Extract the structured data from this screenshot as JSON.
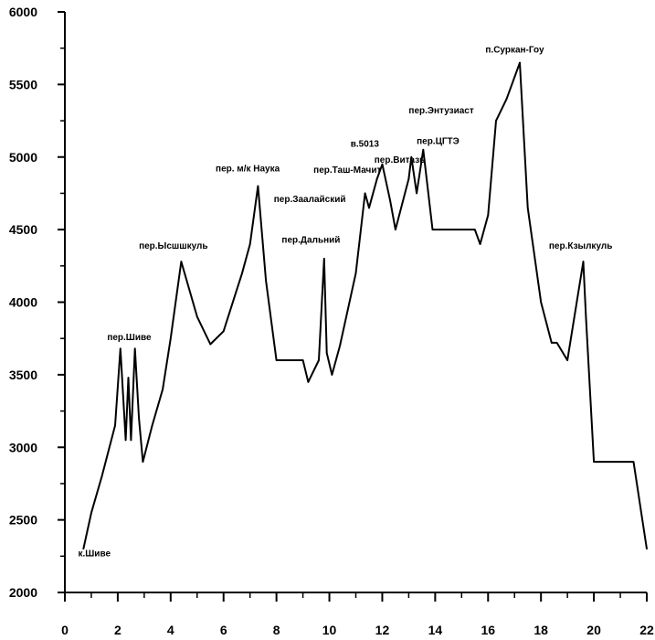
{
  "chart_data": {
    "type": "line",
    "title": "",
    "xlabel": "",
    "ylabel": "",
    "xlim": [
      0,
      22
    ],
    "ylim": [
      2000,
      6000
    ],
    "x_ticks": [
      0,
      2,
      4,
      6,
      8,
      10,
      12,
      14,
      16,
      18,
      20,
      22
    ],
    "y_ticks": [
      2000,
      2500,
      3000,
      3500,
      4000,
      4500,
      5000,
      5500,
      6000
    ],
    "grid": false,
    "legend": "none",
    "series": [
      {
        "x": [
          0.7,
          1.0,
          1.4,
          1.9,
          2.1,
          2.3,
          2.4,
          2.5,
          2.65,
          2.8,
          2.95,
          3.3,
          3.7,
          4.0,
          4.4,
          5.0,
          5.5,
          6.0,
          6.7,
          7.0,
          7.3,
          7.6,
          8.0,
          9.0,
          9.2,
          9.6,
          9.8,
          9.9,
          10.1,
          10.4,
          11.0,
          11.35,
          11.5,
          11.8,
          12.0,
          12.3,
          12.5,
          13.0,
          13.1,
          13.3,
          13.55,
          13.9,
          14.5,
          15.5,
          15.7,
          16.0,
          16.3,
          16.7,
          17.2,
          17.5,
          18.0,
          18.4,
          18.6,
          19.0,
          19.6,
          19.7,
          20.0,
          21.0,
          21.5,
          22.0
        ],
        "y": [
          2300,
          2550,
          2800,
          3150,
          3680,
          3050,
          3480,
          3050,
          3680,
          3200,
          2900,
          3150,
          3400,
          3750,
          4280,
          3900,
          3710,
          3800,
          4200,
          4400,
          4800,
          4150,
          3600,
          3600,
          3450,
          3600,
          4300,
          3650,
          3500,
          3700,
          4200,
          4750,
          4650,
          4850,
          4950,
          4700,
          4500,
          4850,
          5000,
          4750,
          5050,
          4500,
          4500,
          4500,
          4400,
          4600,
          5250,
          5400,
          5650,
          4650,
          4000,
          3720,
          3720,
          3600,
          4280,
          3900,
          2900,
          2900,
          2900,
          2300
        ]
      }
    ],
    "annotations": [
      {
        "text": "к.Шиве",
        "x": 0.5,
        "y": 2250
      },
      {
        "text": "пер.Шиве",
        "x": 1.6,
        "y": 3740
      },
      {
        "text": "пер.Ысшшкуль",
        "x": 2.8,
        "y": 4370
      },
      {
        "text": "пер. м/к Наука",
        "x": 5.7,
        "y": 4900
      },
      {
        "text": "пер.Заалайский",
        "x": 7.9,
        "y": 4690
      },
      {
        "text": "пер.Дальний",
        "x": 8.2,
        "y": 4410
      },
      {
        "text": "пер.Таш-Мачит",
        "x": 9.4,
        "y": 4890
      },
      {
        "text": "в.5013",
        "x": 10.8,
        "y": 5070
      },
      {
        "text": "пер.Витазь",
        "x": 11.7,
        "y": 4960
      },
      {
        "text": "пер.ЦГТЭ",
        "x": 13.3,
        "y": 5090
      },
      {
        "text": "пер.Энтузиаст",
        "x": 13.0,
        "y": 5300
      },
      {
        "text": "п.Суркан-Гоу",
        "x": 15.9,
        "y": 5720
      },
      {
        "text": "пер.Кзылкуль",
        "x": 18.3,
        "y": 4370
      }
    ]
  }
}
